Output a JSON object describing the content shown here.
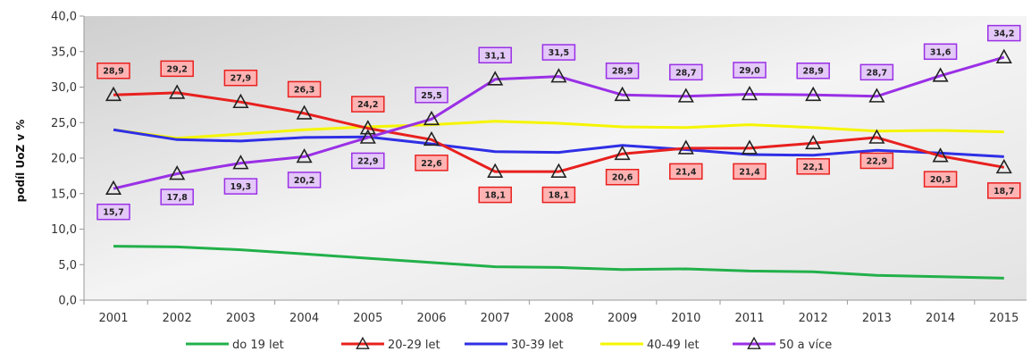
{
  "chart_data": {
    "type": "line",
    "title": "",
    "xlabel": "",
    "ylabel": "podíl UoZ v %",
    "ylim": [
      0,
      40
    ],
    "y_ticks": [
      "0,0",
      "5,0",
      "10,0",
      "15,0",
      "20,0",
      "25,0",
      "30,0",
      "35,0",
      "40,0"
    ],
    "y_tick_values": [
      0,
      5,
      10,
      15,
      20,
      25,
      30,
      35,
      40
    ],
    "categories": [
      "2001",
      "2002",
      "2003",
      "2004",
      "2005",
      "2006",
      "2007",
      "2008",
      "2009",
      "2010",
      "2011",
      "2012",
      "2013",
      "2014",
      "2015"
    ],
    "grid": false,
    "legend_position": "bottom",
    "series": [
      {
        "name": "do 19 let",
        "color": "#22b04a",
        "marker": "none",
        "values": [
          7.6,
          7.5,
          7.1,
          6.5,
          5.9,
          5.3,
          4.7,
          4.6,
          4.3,
          4.4,
          4.1,
          4.0,
          3.5,
          3.3,
          3.1
        ]
      },
      {
        "name": "20-29 let",
        "color": "#e8201e",
        "marker": "triangle",
        "label_fill": "#ffb3b3",
        "label_stroke": "#e8201e",
        "values": [
          28.9,
          29.2,
          27.9,
          26.3,
          24.2,
          22.6,
          18.1,
          18.1,
          20.6,
          21.4,
          21.4,
          22.1,
          22.9,
          20.3,
          18.7
        ],
        "labels": [
          "28,9",
          "29,2",
          "27,9",
          "26,3",
          "24,2",
          "22,6",
          "18,1",
          "18,1",
          "20,6",
          "21,4",
          "21,4",
          "22,1",
          "22,9",
          "20,3",
          "18,7"
        ]
      },
      {
        "name": "30-39 let",
        "color": "#2f2fe6",
        "marker": "none",
        "values": [
          24.0,
          22.6,
          22.4,
          22.9,
          23.0,
          22.0,
          20.9,
          20.8,
          21.8,
          21.2,
          20.5,
          20.4,
          21.1,
          20.7,
          20.2
        ]
      },
      {
        "name": "40-49 let",
        "color": "#f5f500",
        "marker": "none",
        "values": [
          24.0,
          22.8,
          23.4,
          24.0,
          24.4,
          24.7,
          25.2,
          24.9,
          24.4,
          24.3,
          24.7,
          24.3,
          23.8,
          23.9,
          23.7
        ]
      },
      {
        "name": "50 a více",
        "color": "#9a30e6",
        "marker": "triangle",
        "label_fill": "#e3c8f8",
        "label_stroke": "#9a30e6",
        "values": [
          15.7,
          17.8,
          19.3,
          20.2,
          22.9,
          25.5,
          31.1,
          31.5,
          28.9,
          28.7,
          29.0,
          28.9,
          28.7,
          31.6,
          34.2
        ],
        "labels": [
          "15,7",
          "17,8",
          "19,3",
          "20,2",
          "22,9",
          "25,5",
          "31,1",
          "31,5",
          "28,9",
          "28,7",
          "29,0",
          "28,9",
          "28,7",
          "31,6",
          "34,2"
        ]
      }
    ]
  }
}
